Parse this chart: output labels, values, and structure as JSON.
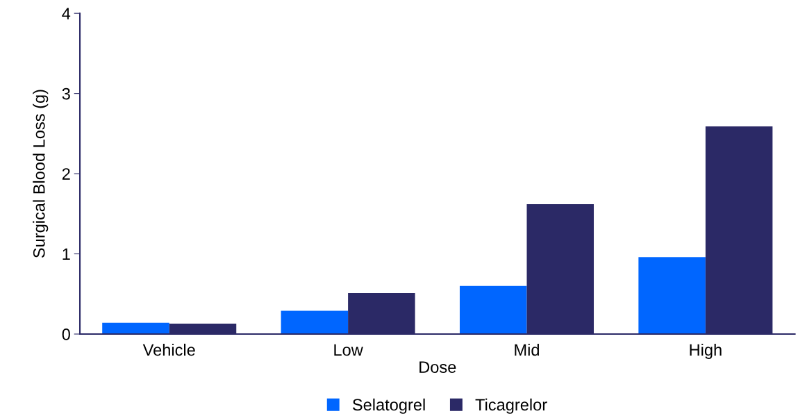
{
  "chart_data": {
    "type": "bar",
    "xlabel": "Dose",
    "ylabel": "Surgical Blood Loss (g)",
    "categories": [
      "Vehicle",
      "Low",
      "Mid",
      "High"
    ],
    "series": [
      {
        "name": "Selatogrel",
        "color": "#0066ff",
        "values": [
          0.14,
          0.29,
          0.6,
          0.96
        ]
      },
      {
        "name": "Ticagrelor",
        "color": "#2b2966",
        "values": [
          0.13,
          0.51,
          1.62,
          2.59
        ]
      }
    ],
    "ylim": [
      0,
      4
    ],
    "yticks": [
      0,
      1,
      2,
      3,
      4
    ],
    "grid": false,
    "legend": "bottom"
  }
}
